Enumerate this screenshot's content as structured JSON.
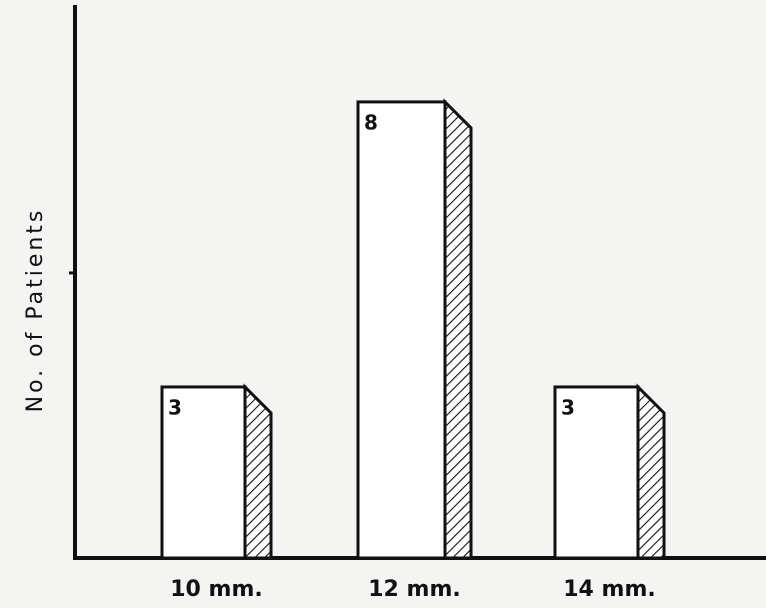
{
  "chart_data": {
    "type": "bar3d",
    "y_label": "No. of Patients",
    "categories": [
      "10 mm.",
      "12 mm.",
      "14 mm."
    ],
    "values": [
      3,
      8,
      3
    ],
    "ylim": [
      0,
      9.7
    ],
    "yticks": [
      5
    ]
  }
}
